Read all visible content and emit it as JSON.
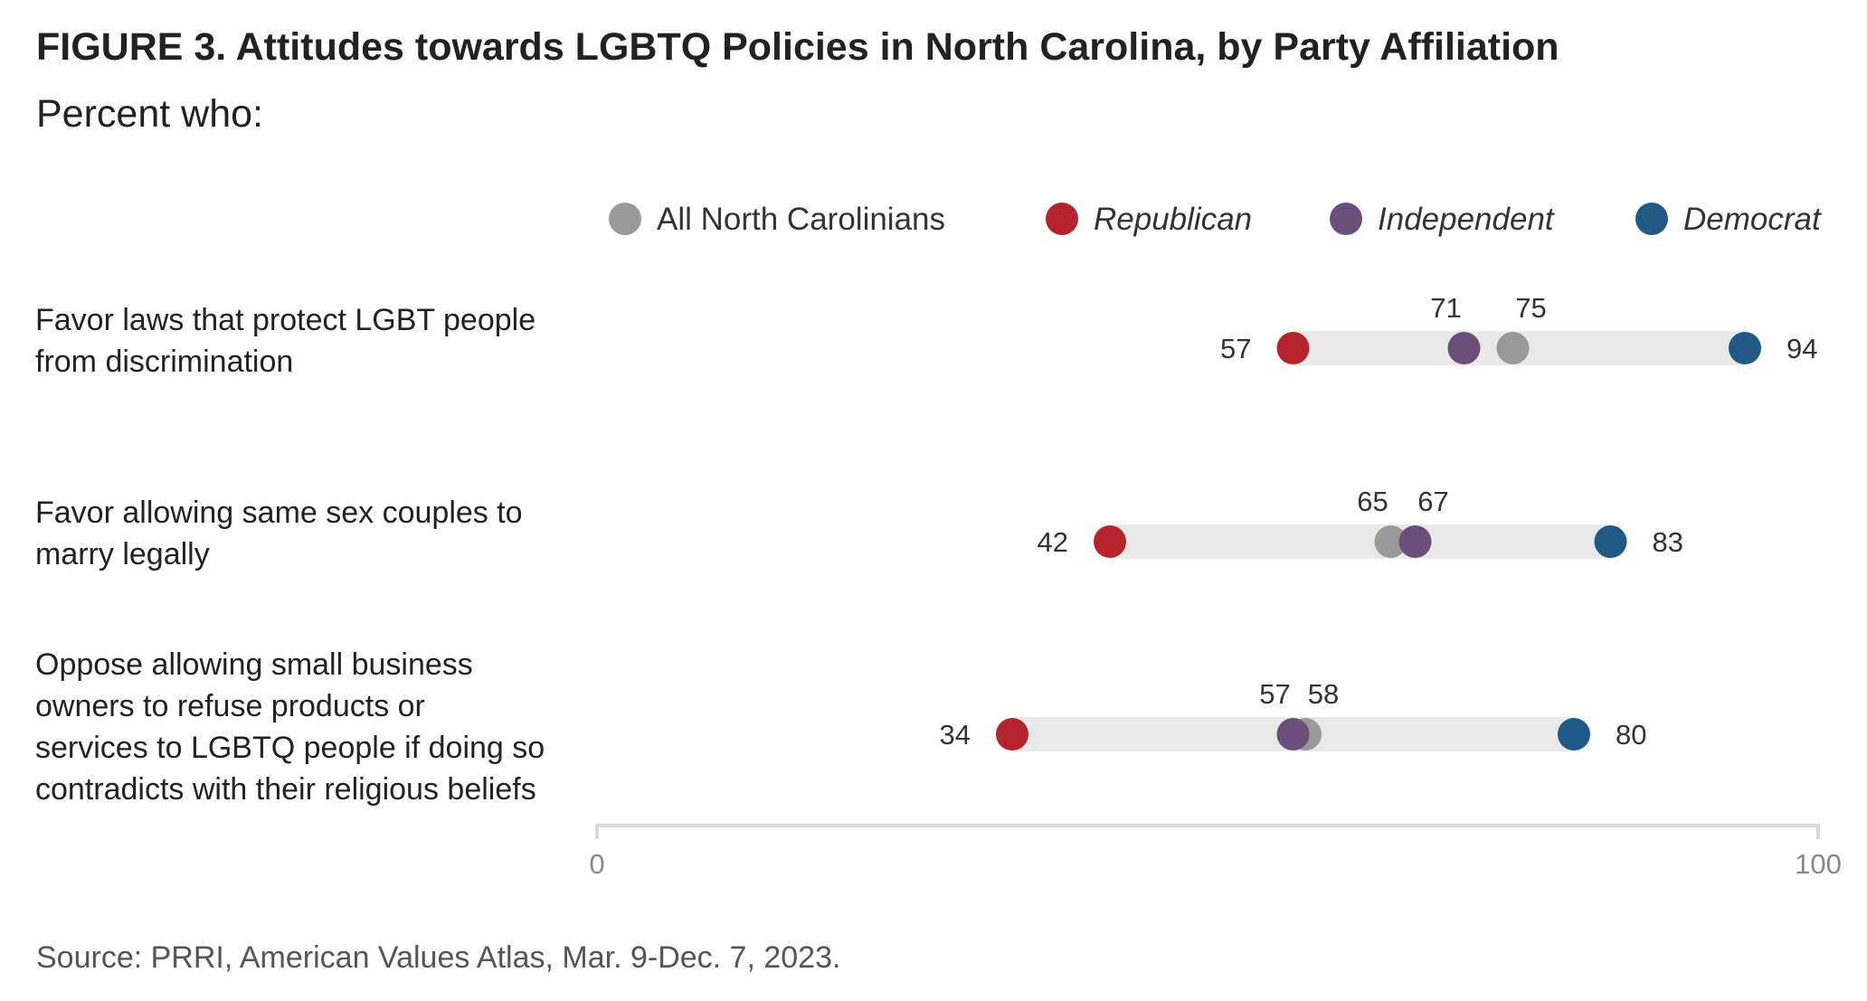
{
  "title": "FIGURE 3. Attitudes towards LGBTQ Policies in North Carolina, by Party Affiliation",
  "subtitle": "Percent who:",
  "source": "Source: PRRI, American Values Atlas, Mar. 9-Dec. 7, 2023.",
  "chart_data": {
    "type": "dot-range",
    "xlim": [
      0,
      100
    ],
    "x_ticks": [
      "0",
      "100"
    ],
    "grid": false,
    "legend_position": "top",
    "series": [
      {
        "name": "All North Carolinians",
        "color": "#999999",
        "italic": false
      },
      {
        "name": "Republican",
        "color": "#b5232d",
        "italic": true
      },
      {
        "name": "Independent",
        "color": "#6b4f7a",
        "italic": true
      },
      {
        "name": "Democrat",
        "color": "#1f5a85",
        "italic": true
      }
    ],
    "categories": [
      {
        "label_lines": [
          "Favor laws that protect LGBT people",
          "from discrimination"
        ],
        "values": {
          "All North Carolinians": 75,
          "Republican": 57,
          "Independent": 71,
          "Democrat": 94
        }
      },
      {
        "label_lines": [
          "Favor allowing same sex couples to",
          "marry legally"
        ],
        "values": {
          "All North Carolinians": 65,
          "Republican": 42,
          "Independent": 67,
          "Democrat": 83
        }
      },
      {
        "label_lines": [
          "Oppose allowing small business",
          "owners to refuse products or",
          "services to LGBTQ people if doing so",
          "contradicts with their religious beliefs"
        ],
        "values": {
          "All North Carolinians": 58,
          "Republican": 34,
          "Independent": 57,
          "Democrat": 80
        }
      }
    ]
  }
}
